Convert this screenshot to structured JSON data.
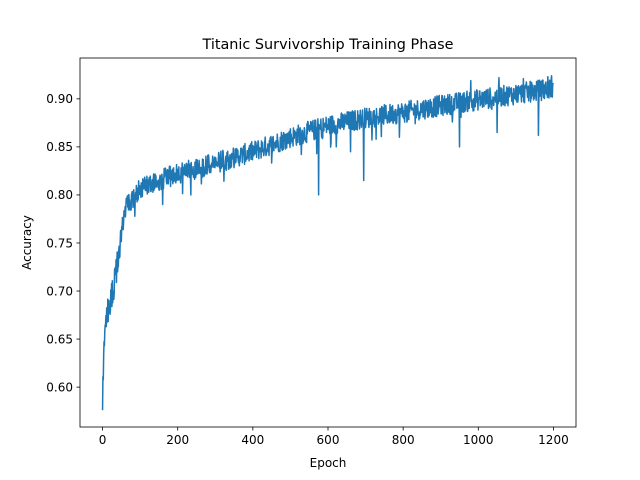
{
  "chart_data": {
    "type": "line",
    "title": "Titanic Survivorship Training Phase",
    "xlabel": "Epoch",
    "ylabel": "Accuracy",
    "xlim": [
      -60,
      1260
    ],
    "ylim": [
      0.5585,
      0.9425
    ],
    "xticks": [
      0,
      200,
      400,
      600,
      800,
      1000,
      1200
    ],
    "yticks": [
      0.6,
      0.65,
      0.7,
      0.75,
      0.8,
      0.85,
      0.9
    ],
    "grid": false,
    "legend": "none",
    "series": [
      {
        "color": "#1f77b4",
        "description": "Noisy training accuracy: starts at 0.576 at epoch 0, rises steeply to ~0.79 by epoch 60, then climbs slowly to ~0.91 by epoch 1200, with occasional downward spikes (~0.80 at 575, ~0.815 at 695).",
        "anchors_x": [
          0,
          2,
          5,
          10,
          20,
          30,
          40,
          50,
          60,
          80,
          100,
          150,
          200,
          300,
          400,
          500,
          600,
          700,
          800,
          900,
          1000,
          1100,
          1200
        ],
        "anchors_y": [
          0.576,
          0.62,
          0.655,
          0.675,
          0.69,
          0.705,
          0.73,
          0.76,
          0.785,
          0.797,
          0.806,
          0.815,
          0.822,
          0.833,
          0.845,
          0.86,
          0.872,
          0.88,
          0.886,
          0.893,
          0.899,
          0.905,
          0.911
        ],
        "noise_amplitude": 0.011,
        "n_points": 1200,
        "dips": [
          {
            "x": 575,
            "y": 0.8
          },
          {
            "x": 695,
            "y": 0.815
          },
          {
            "x": 570,
            "y": 0.843
          },
          {
            "x": 622,
            "y": 0.85
          },
          {
            "x": 660,
            "y": 0.845
          },
          {
            "x": 790,
            "y": 0.86
          },
          {
            "x": 950,
            "y": 0.85
          },
          {
            "x": 1050,
            "y": 0.865
          },
          {
            "x": 1160,
            "y": 0.862
          },
          {
            "x": 160,
            "y": 0.79
          },
          {
            "x": 235,
            "y": 0.8
          }
        ],
        "peaks": [
          {
            "x": 1195,
            "y": 0.924
          },
          {
            "x": 1120,
            "y": 0.921
          },
          {
            "x": 1055,
            "y": 0.922
          },
          {
            "x": 980,
            "y": 0.919
          },
          {
            "x": 1185,
            "y": 0.923
          }
        ]
      }
    ]
  }
}
